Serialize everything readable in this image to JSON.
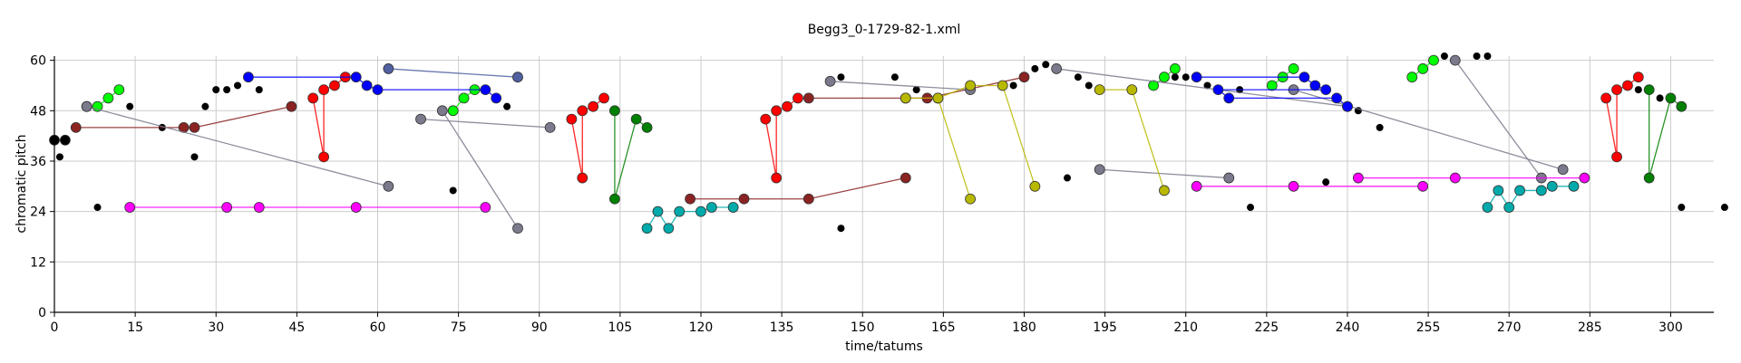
{
  "chart_data": {
    "type": "scatter",
    "title": "Begg3_0-1729-82-1.xml",
    "xlabel": "time/tatums",
    "ylabel": "chromatic pitch",
    "xlim": [
      0,
      308
    ],
    "ylim": [
      0,
      61
    ],
    "x_ticks": [
      0,
      15,
      30,
      45,
      60,
      75,
      90,
      105,
      120,
      135,
      150,
      165,
      180,
      195,
      210,
      225,
      240,
      255,
      270,
      285,
      300
    ],
    "y_ticks": [
      0,
      12,
      24,
      36,
      48,
      60
    ],
    "grid": true,
    "series": [
      {
        "color": "#000000",
        "kind": "dots",
        "points": [
          [
            1,
            37
          ],
          [
            8,
            25
          ],
          [
            14,
            49
          ],
          [
            20,
            44
          ],
          [
            26,
            37
          ],
          [
            28,
            49
          ],
          [
            30,
            53
          ],
          [
            32,
            53
          ],
          [
            34,
            54
          ],
          [
            38,
            53
          ],
          [
            62,
            30
          ],
          [
            68,
            46
          ],
          [
            74,
            29
          ],
          [
            84,
            49
          ],
          [
            92,
            44
          ],
          [
            146,
            20
          ],
          [
            146,
            56
          ],
          [
            156,
            56
          ],
          [
            160,
            53
          ],
          [
            178,
            54
          ],
          [
            182,
            58
          ],
          [
            184,
            59
          ],
          [
            186,
            58
          ],
          [
            188,
            32
          ],
          [
            190,
            56
          ],
          [
            192,
            54
          ],
          [
            208,
            56
          ],
          [
            210,
            56
          ],
          [
            214,
            54
          ],
          [
            218,
            32
          ],
          [
            220,
            53
          ],
          [
            222,
            25
          ],
          [
            236,
            31
          ],
          [
            242,
            48
          ],
          [
            246,
            44
          ],
          [
            258,
            61
          ],
          [
            260,
            60
          ],
          [
            264,
            61
          ],
          [
            266,
            61
          ],
          [
            280,
            34
          ],
          [
            294,
            53
          ],
          [
            298,
            51
          ],
          [
            302,
            25
          ],
          [
            310,
            25
          ]
        ]
      },
      {
        "color": "#000000",
        "kind": "line",
        "points": [
          [
            0,
            41
          ],
          [
            2,
            41
          ]
        ]
      },
      {
        "color": "#00ff00",
        "kind": "line",
        "points": [
          [
            6,
            49
          ],
          [
            8,
            49
          ],
          [
            10,
            51
          ],
          [
            12,
            53
          ]
        ]
      },
      {
        "color": "#00ff00",
        "kind": "line",
        "points": [
          [
            74,
            48
          ],
          [
            76,
            51
          ],
          [
            78,
            53
          ]
        ]
      },
      {
        "color": "#00ff00",
        "kind": "line",
        "points": [
          [
            204,
            54
          ],
          [
            206,
            56
          ],
          [
            208,
            58
          ]
        ]
      },
      {
        "color": "#00ff00",
        "kind": "line",
        "points": [
          [
            226,
            54
          ],
          [
            228,
            56
          ],
          [
            230,
            58
          ]
        ]
      },
      {
        "color": "#00ff00",
        "kind": "line",
        "points": [
          [
            252,
            56
          ],
          [
            254,
            58
          ],
          [
            256,
            60
          ]
        ]
      },
      {
        "color": "#8b2323",
        "kind": "line",
        "points": [
          [
            4,
            44
          ],
          [
            24,
            44
          ],
          [
            26,
            44
          ],
          [
            44,
            49
          ]
        ]
      },
      {
        "color": "#8b2323",
        "kind": "line",
        "points": [
          [
            118,
            27
          ],
          [
            128,
            27
          ],
          [
            140,
            27
          ],
          [
            158,
            32
          ]
        ]
      },
      {
        "color": "#8b2323",
        "kind": "line",
        "points": [
          [
            140,
            51
          ],
          [
            158,
            51
          ],
          [
            162,
            51
          ],
          [
            180,
            56
          ]
        ]
      },
      {
        "color": "#7a7a8c",
        "kind": "line",
        "points": [
          [
            6,
            49
          ],
          [
            62,
            30
          ]
        ]
      },
      {
        "color": "#7a7a8c",
        "kind": "line",
        "points": [
          [
            72,
            48
          ],
          [
            86,
            20
          ]
        ]
      },
      {
        "color": "#7a7a8c",
        "kind": "line",
        "points": [
          [
            144,
            55
          ],
          [
            170,
            53
          ]
        ]
      },
      {
        "color": "#7a7a8c",
        "kind": "line",
        "points": [
          [
            260,
            60
          ],
          [
            276,
            32
          ]
        ]
      },
      {
        "color": "#7a7a8c",
        "kind": "line",
        "points": [
          [
            194,
            34
          ],
          [
            218,
            32
          ]
        ]
      },
      {
        "color": "#7a7a8c",
        "kind": "line",
        "points": [
          [
            230,
            53
          ],
          [
            280,
            34
          ]
        ]
      },
      {
        "color": "#7a7a8c",
        "kind": "line",
        "points": [
          [
            186,
            58
          ],
          [
            240,
            49
          ]
        ]
      },
      {
        "color": "#7a7a8c",
        "kind": "line",
        "points": [
          [
            68,
            46
          ],
          [
            92,
            44
          ]
        ]
      },
      {
        "color": "#5060a0",
        "kind": "line",
        "points": [
          [
            62,
            58
          ],
          [
            86,
            56
          ]
        ]
      },
      {
        "color": "#ff00ff",
        "kind": "line",
        "points": [
          [
            14,
            25
          ],
          [
            32,
            25
          ],
          [
            38,
            25
          ],
          [
            56,
            25
          ],
          [
            80,
            25
          ]
        ]
      },
      {
        "color": "#ff00ff",
        "kind": "line",
        "points": [
          [
            212,
            30
          ],
          [
            230,
            30
          ],
          [
            254,
            30
          ]
        ]
      },
      {
        "color": "#ff00ff",
        "kind": "line",
        "points": [
          [
            242,
            32
          ],
          [
            260,
            32
          ],
          [
            284,
            32
          ]
        ]
      },
      {
        "color": "#ff0000",
        "kind": "line",
        "points": [
          [
            48,
            51
          ],
          [
            50,
            37
          ],
          [
            50,
            53
          ],
          [
            52,
            54
          ],
          [
            54,
            56
          ]
        ]
      },
      {
        "color": "#ff0000",
        "kind": "line",
        "points": [
          [
            96,
            46
          ],
          [
            98,
            32
          ],
          [
            98,
            48
          ],
          [
            100,
            49
          ],
          [
            102,
            51
          ]
        ]
      },
      {
        "color": "#ff0000",
        "kind": "line",
        "points": [
          [
            132,
            46
          ],
          [
            134,
            32
          ],
          [
            134,
            48
          ],
          [
            136,
            49
          ],
          [
            138,
            51
          ]
        ]
      },
      {
        "color": "#ff0000",
        "kind": "line",
        "points": [
          [
            288,
            51
          ],
          [
            290,
            37
          ],
          [
            290,
            53
          ],
          [
            292,
            54
          ],
          [
            294,
            56
          ]
        ]
      },
      {
        "color": "#0000ff",
        "kind": "line",
        "points": [
          [
            36,
            56
          ],
          [
            56,
            56
          ],
          [
            58,
            54
          ],
          [
            60,
            53
          ],
          [
            80,
            53
          ],
          [
            82,
            51
          ]
        ]
      },
      {
        "color": "#0000ff",
        "kind": "line",
        "points": [
          [
            212,
            56
          ],
          [
            232,
            56
          ],
          [
            234,
            54
          ],
          [
            236,
            53
          ],
          [
            216,
            53
          ],
          [
            218,
            51
          ],
          [
            238,
            51
          ],
          [
            240,
            49
          ]
        ]
      },
      {
        "color": "#008000",
        "kind": "line",
        "points": [
          [
            104,
            48
          ],
          [
            104,
            27
          ],
          [
            108,
            46
          ],
          [
            110,
            44
          ]
        ]
      },
      {
        "color": "#008000",
        "kind": "line",
        "points": [
          [
            296,
            53
          ],
          [
            296,
            32
          ],
          [
            300,
            51
          ],
          [
            302,
            49
          ]
        ]
      },
      {
        "color": "#00aaaa",
        "kind": "line",
        "points": [
          [
            110,
            20
          ],
          [
            112,
            24
          ],
          [
            114,
            20
          ],
          [
            116,
            24
          ],
          [
            120,
            24
          ],
          [
            122,
            25
          ],
          [
            126,
            25
          ]
        ]
      },
      {
        "color": "#00aaaa",
        "kind": "line",
        "points": [
          [
            266,
            25
          ],
          [
            268,
            29
          ],
          [
            270,
            25
          ],
          [
            272,
            29
          ],
          [
            276,
            29
          ],
          [
            278,
            30
          ],
          [
            282,
            30
          ]
        ]
      },
      {
        "color": "#b8b800",
        "kind": "line",
        "points": [
          [
            158,
            51
          ],
          [
            164,
            51
          ],
          [
            170,
            27
          ]
        ]
      },
      {
        "color": "#b8b800",
        "kind": "line",
        "points": [
          [
            164,
            51
          ],
          [
            170,
            54
          ],
          [
            176,
            54
          ],
          [
            182,
            30
          ]
        ]
      },
      {
        "color": "#b8b800",
        "kind": "line",
        "points": [
          [
            194,
            53
          ],
          [
            200,
            53
          ],
          [
            206,
            29
          ]
        ]
      }
    ]
  }
}
